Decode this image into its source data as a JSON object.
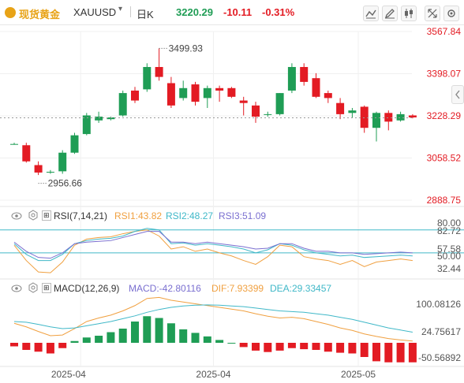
{
  "header": {
    "symbol_name": "现货黄金",
    "symbol_code": "XAUUSD",
    "period": "日K",
    "price": "3220.29",
    "change": "-10.11",
    "change_pct": "-0.31%"
  },
  "colors": {
    "up": "#1f9d55",
    "down": "#e31b23",
    "gold": "#d4a017",
    "rsi1": "#f0a040",
    "rsi2": "#40b8c8",
    "rsi3": "#7a6fd0",
    "dif": "#f0a040",
    "dea": "#40b8c8"
  },
  "icons": [
    "gold-icon",
    "dropdown-icon",
    "chart-style-icon",
    "draw-icon",
    "candle-type-icon",
    "expand-icon",
    "settings-icon",
    "eye-icon",
    "gear-icon",
    "sidebar-toggle-icon"
  ],
  "chart_data": {
    "type": "candlestick",
    "price_axis_ticks": [
      "3567.84",
      "3398.07",
      "3228.29",
      "3058.52",
      "2888.75"
    ],
    "ylim": [
      2888.75,
      3567.84
    ],
    "annotations": {
      "high": "3499.93",
      "low": "2956.66"
    },
    "date_labels": [
      "2025-04",
      "2025-04",
      "2025-05"
    ],
    "candles": [
      {
        "o": 3112,
        "h": 3120,
        "l": 3112,
        "c": 3115
      },
      {
        "o": 3110,
        "h": 3120,
        "l": 3040,
        "c": 3045
      },
      {
        "o": 3030,
        "h": 3045,
        "l": 2990,
        "c": 3000
      },
      {
        "o": 3000,
        "h": 3010,
        "l": 2995,
        "c": 3003
      },
      {
        "o": 3005,
        "h": 3090,
        "l": 2995,
        "c": 3080
      },
      {
        "o": 3080,
        "h": 3160,
        "l": 3075,
        "c": 3150
      },
      {
        "o": 3155,
        "h": 3240,
        "l": 3150,
        "c": 3230
      },
      {
        "o": 3210,
        "h": 3245,
        "l": 3200,
        "c": 3225
      },
      {
        "o": 3215,
        "h": 3225,
        "l": 3210,
        "c": 3222
      },
      {
        "o": 3230,
        "h": 3330,
        "l": 3225,
        "c": 3320
      },
      {
        "o": 3330,
        "h": 3345,
        "l": 3280,
        "c": 3290
      },
      {
        "o": 3335,
        "h": 3440,
        "l": 3325,
        "c": 3425
      },
      {
        "o": 3425,
        "h": 3499.93,
        "l": 3370,
        "c": 3385
      },
      {
        "o": 3360,
        "h": 3385,
        "l": 3260,
        "c": 3270
      },
      {
        "o": 3300,
        "h": 3370,
        "l": 3290,
        "c": 3340
      },
      {
        "o": 3355,
        "h": 3365,
        "l": 3270,
        "c": 3285
      },
      {
        "o": 3300,
        "h": 3350,
        "l": 3260,
        "c": 3340
      },
      {
        "o": 3340,
        "h": 3350,
        "l": 3285,
        "c": 3330
      },
      {
        "o": 3340,
        "h": 3345,
        "l": 3300,
        "c": 3305
      },
      {
        "o": 3290,
        "h": 3305,
        "l": 3230,
        "c": 3280
      },
      {
        "o": 3270,
        "h": 3285,
        "l": 3200,
        "c": 3225
      },
      {
        "o": 3235,
        "h": 3245,
        "l": 3225,
        "c": 3235
      },
      {
        "o": 3235,
        "h": 3320,
        "l": 3230,
        "c": 3320
      },
      {
        "o": 3330,
        "h": 3440,
        "l": 3320,
        "c": 3425
      },
      {
        "o": 3425,
        "h": 3440,
        "l": 3350,
        "c": 3365
      },
      {
        "o": 3380,
        "h": 3400,
        "l": 3300,
        "c": 3305
      },
      {
        "o": 3320,
        "h": 3330,
        "l": 3280,
        "c": 3300
      },
      {
        "o": 3280,
        "h": 3300,
        "l": 3215,
        "c": 3235
      },
      {
        "o": 3240,
        "h": 3260,
        "l": 3220,
        "c": 3250
      },
      {
        "o": 3265,
        "h": 3270,
        "l": 3160,
        "c": 3180
      },
      {
        "o": 3180,
        "h": 3245,
        "l": 3125,
        "c": 3240
      },
      {
        "o": 3240,
        "h": 3250,
        "l": 3170,
        "c": 3205
      },
      {
        "o": 3210,
        "h": 3245,
        "l": 3205,
        "c": 3235
      },
      {
        "o": 3230,
        "h": 3235,
        "l": 3218,
        "c": 3222
      }
    ]
  },
  "rsi": {
    "title": "RSI(7,14,21)",
    "rsi1_label": "RSI1:43.82",
    "rsi2_label": "RSI2:48.27",
    "rsi3_label": "RSI3:51.09",
    "ticks": [
      "80.00",
      "82.72",
      "57.58",
      "50.00",
      "32.44"
    ],
    "ylim": [
      20,
      90
    ],
    "rsi1": [
      60,
      40,
      25,
      24,
      38,
      60,
      68,
      70,
      71,
      75,
      78,
      80,
      72,
      55,
      58,
      52,
      55,
      50,
      46,
      40,
      35,
      45,
      60,
      58,
      45,
      42,
      40,
      35,
      40,
      32,
      38,
      40,
      42,
      40
    ],
    "rsi2": [
      62,
      48,
      40,
      40,
      48,
      62,
      66,
      68,
      69,
      72,
      78,
      82,
      80,
      62,
      63,
      60,
      62,
      60,
      58,
      55,
      50,
      54,
      62,
      60,
      54,
      50,
      48,
      46,
      47,
      44,
      45,
      46,
      47,
      46
    ],
    "rsi3": [
      64,
      52,
      44,
      43,
      50,
      62,
      64,
      65,
      66,
      70,
      74,
      78,
      78,
      64,
      64,
      62,
      64,
      62,
      60,
      58,
      55,
      56,
      62,
      62,
      56,
      52,
      52,
      50,
      50,
      48,
      49,
      50,
      51,
      50
    ]
  },
  "macd": {
    "title": "MACD(12,26,9)",
    "macd_label": "MACD:-42.80116",
    "dif_label": "DIF:7.93399",
    "dea_label": "DEA:29.33457",
    "ticks": [
      "100.08126",
      "24.75617",
      "-50.56892"
    ],
    "ylim": [
      -60,
      140
    ],
    "hist": [
      -10,
      -20,
      -25,
      -30,
      -15,
      5,
      15,
      20,
      30,
      40,
      60,
      75,
      70,
      55,
      38,
      28,
      18,
      8,
      0,
      -12,
      -22,
      -26,
      -22,
      -15,
      -18,
      -20,
      -25,
      -28,
      -30,
      -40,
      -52,
      -55,
      -55,
      -55
    ],
    "dif": [
      55,
      45,
      32,
      20,
      22,
      40,
      60,
      70,
      78,
      90,
      105,
      125,
      128,
      120,
      115,
      110,
      105,
      100,
      95,
      90,
      82,
      75,
      70,
      72,
      68,
      60,
      52,
      42,
      35,
      25,
      18,
      12,
      8,
      5
    ],
    "dea": [
      60,
      58,
      52,
      45,
      40,
      42,
      48,
      54,
      60,
      68,
      76,
      86,
      94,
      100,
      104,
      106,
      107,
      106,
      104,
      102,
      98,
      94,
      90,
      88,
      86,
      82,
      78,
      72,
      66,
      58,
      50,
      42,
      36,
      30
    ]
  }
}
